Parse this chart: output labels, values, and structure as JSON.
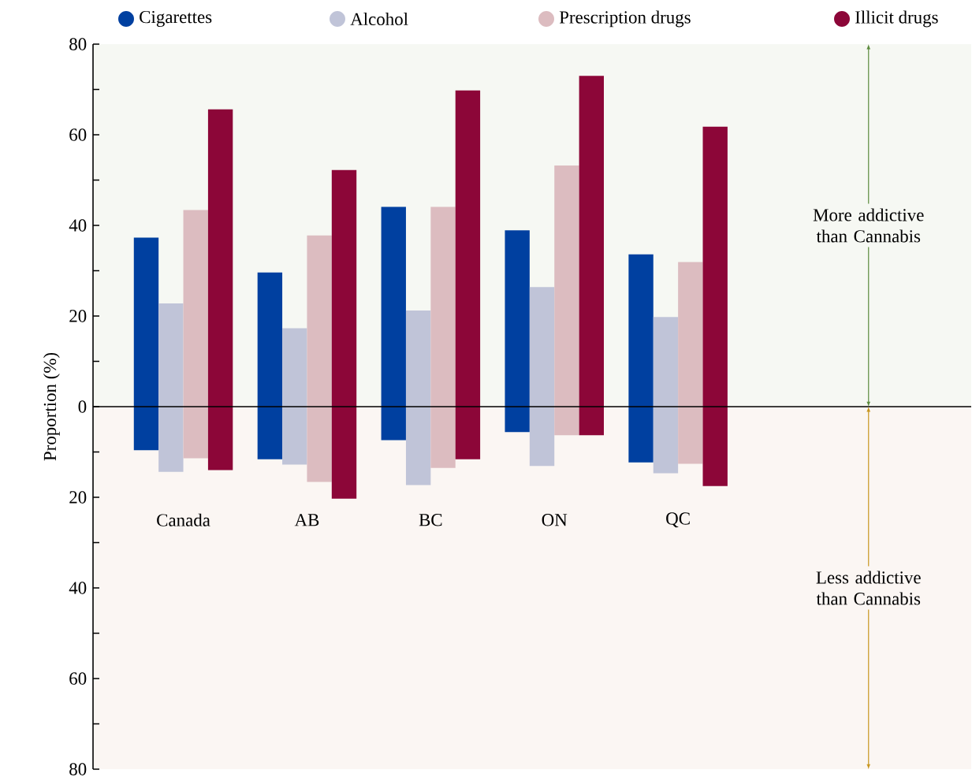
{
  "chart_data": {
    "type": "bar",
    "ylabel": "Proportion (%)",
    "categories": [
      "Canada",
      "AB",
      "BC",
      "ON",
      "QC"
    ],
    "series": [
      {
        "name": "Cigarettes",
        "color": "#0040a0",
        "base": [
          -9.6,
          -11.6,
          -7.4,
          -5.6,
          -12.3
        ],
        "values": [
          46.9,
          41.2,
          51.5,
          44.5,
          45.9
        ]
      },
      {
        "name": "Alcohol",
        "color": "#c0c4d8",
        "base": [
          -14.4,
          -12.8,
          -17.3,
          -13.1,
          -14.7
        ],
        "values": [
          37.2,
          30.1,
          38.5,
          39.5,
          34.5
        ]
      },
      {
        "name": "Prescription drugs",
        "color": "#dcbcc0",
        "base": [
          -11.4,
          -16.6,
          -13.5,
          -6.3,
          -12.6
        ],
        "values": [
          54.8,
          54.4,
          57.6,
          59.5,
          44.5
        ]
      },
      {
        "name": "Illicit drugs",
        "color": "#8c0638",
        "base": [
          -14.0,
          -20.3,
          -11.6,
          -6.3,
          -17.5
        ],
        "values": [
          79.6,
          72.5,
          81.4,
          79.3,
          79.3
        ]
      }
    ],
    "ylim": [
      -80,
      80
    ],
    "yticks": [
      {
        "value": -80,
        "label": "80"
      },
      {
        "value": -60,
        "label": "60"
      },
      {
        "value": -40,
        "label": "40"
      },
      {
        "value": -20,
        "label": "20"
      },
      0,
      20,
      40,
      60,
      80
    ],
    "ref_lines": [
      {
        "axis": "y",
        "value": 0,
        "color": "#000000"
      }
    ],
    "bands": [
      {
        "axis": "y",
        "from": 0,
        "to": 80,
        "label": "More addictive than Cannabis",
        "color": "#f6f8f3"
      },
      {
        "axis": "y",
        "from": -80,
        "to": 0,
        "label": "Less addictive than Cannabis",
        "color": "#fbf6f3"
      }
    ],
    "grid": false,
    "legend": "top"
  }
}
